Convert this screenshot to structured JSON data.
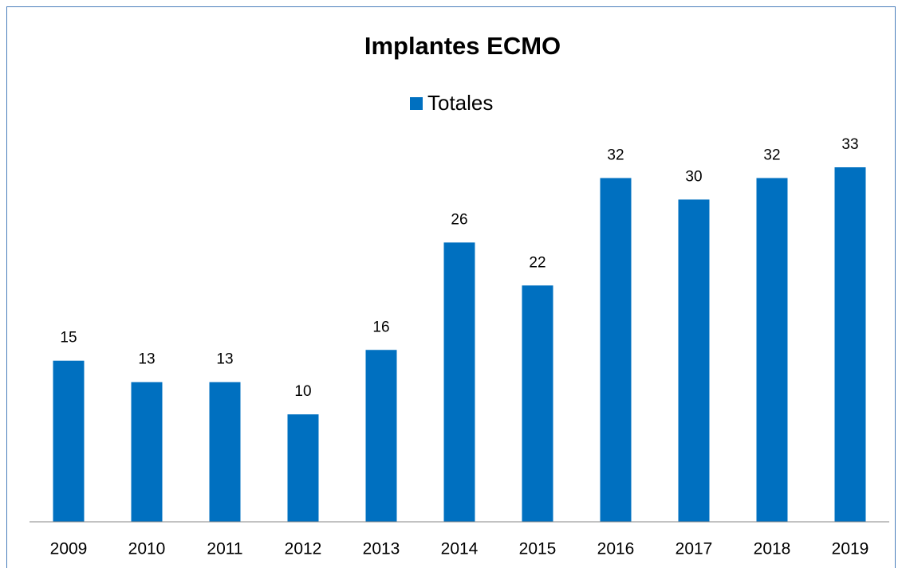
{
  "chart_data": {
    "type": "bar",
    "title": "Implantes ECMO",
    "categories": [
      "2009",
      "2010",
      "2011",
      "2012",
      "2013",
      "2014",
      "2015",
      "2016",
      "2017",
      "2018",
      "2019"
    ],
    "series": [
      {
        "name": "Totales",
        "color": "#0070c0",
        "values": [
          15,
          13,
          13,
          10,
          16,
          26,
          22,
          32,
          30,
          32,
          33
        ]
      }
    ],
    "legend": "top"
  }
}
